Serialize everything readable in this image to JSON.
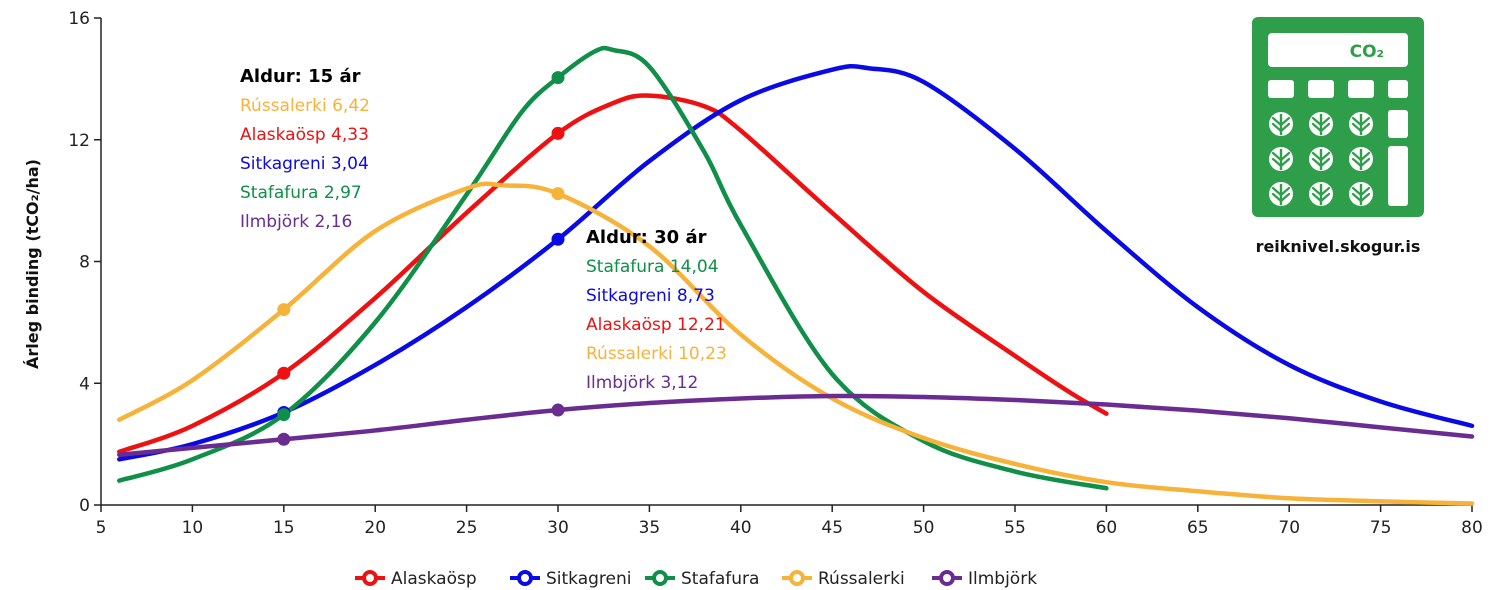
{
  "chart_data": {
    "type": "line",
    "ylabel": "Árleg binding (tCO₂/ha)",
    "xlabel": "",
    "xlim": [
      5,
      80
    ],
    "ylim": [
      0,
      16
    ],
    "x_ticks": [
      5,
      10,
      15,
      20,
      25,
      30,
      35,
      40,
      45,
      50,
      55,
      60,
      65,
      70,
      75,
      80
    ],
    "y_ticks": [
      0,
      4,
      8,
      12,
      16
    ],
    "grid": false,
    "legend_position": "bottom",
    "series": [
      {
        "name": "Alaskaösp",
        "color": "#ee1111",
        "x": [
          6,
          10,
          15,
          20,
          25,
          30,
          33,
          35,
          38,
          40,
          45,
          50,
          55,
          58,
          60
        ],
        "y": [
          1.75,
          2.6,
          4.33,
          6.8,
          9.6,
          12.21,
          13.2,
          13.45,
          13.1,
          12.3,
          9.6,
          7.0,
          4.9,
          3.7,
          3.0
        ]
      },
      {
        "name": "Sitkagreni",
        "color": "#0a0ae6",
        "x": [
          6,
          10,
          15,
          20,
          25,
          30,
          35,
          40,
          45,
          47,
          50,
          55,
          60,
          65,
          70,
          75,
          80
        ],
        "y": [
          1.5,
          2.0,
          3.04,
          4.6,
          6.5,
          8.73,
          11.3,
          13.3,
          14.3,
          14.35,
          13.9,
          11.7,
          9.0,
          6.5,
          4.6,
          3.4,
          2.6
        ]
      },
      {
        "name": "Stafafura",
        "color": "#0f8f47",
        "x": [
          6,
          10,
          15,
          20,
          25,
          28,
          30,
          32,
          33,
          35,
          38,
          40,
          45,
          50,
          55,
          60
        ],
        "y": [
          0.8,
          1.5,
          2.97,
          6.0,
          10.2,
          12.9,
          14.04,
          14.9,
          14.95,
          14.4,
          11.6,
          9.2,
          4.3,
          2.1,
          1.1,
          0.55
        ]
      },
      {
        "name": "Rússalerki",
        "color": "#f7b23a",
        "x": [
          6,
          10,
          15,
          20,
          25,
          27,
          30,
          35,
          40,
          45,
          50,
          55,
          60,
          65,
          70,
          75,
          80
        ],
        "y": [
          2.8,
          4.1,
          6.42,
          9.0,
          10.4,
          10.5,
          10.23,
          8.5,
          5.6,
          3.5,
          2.2,
          1.35,
          0.75,
          0.45,
          0.22,
          0.12,
          0.05
        ]
      },
      {
        "name": "Ilmbjörk",
        "color": "#6a2c91",
        "x": [
          6,
          15,
          20,
          25,
          30,
          35,
          40,
          45,
          50,
          55,
          60,
          65,
          70,
          75,
          80
        ],
        "y": [
          1.65,
          2.16,
          2.45,
          2.8,
          3.12,
          3.35,
          3.5,
          3.58,
          3.55,
          3.45,
          3.3,
          3.1,
          2.85,
          2.55,
          2.25
        ]
      }
    ],
    "markers": [
      {
        "series": "Rússalerki",
        "x": 15,
        "y": 6.42
      },
      {
        "series": "Alaskaösp",
        "x": 15,
        "y": 4.33
      },
      {
        "series": "Sitkagreni",
        "x": 15,
        "y": 3.04
      },
      {
        "series": "Stafafura",
        "x": 15,
        "y": 2.97
      },
      {
        "series": "Ilmbjörk",
        "x": 15,
        "y": 2.16
      },
      {
        "series": "Stafafura",
        "x": 30,
        "y": 14.04
      },
      {
        "series": "Alaskaösp",
        "x": 30,
        "y": 12.21
      },
      {
        "series": "Rússalerki",
        "x": 30,
        "y": 10.23
      },
      {
        "series": "Sitkagreni",
        "x": 30,
        "y": 8.73
      },
      {
        "series": "Ilmbjörk",
        "x": 30,
        "y": 3.12
      }
    ],
    "annotations": [
      {
        "title": "Aldur: 15 ár",
        "lines": [
          {
            "text": "Rússalerki 6,42",
            "color": "#f7b23a"
          },
          {
            "text": "Alaskaösp 4,33",
            "color": "#ee1111"
          },
          {
            "text": "Sitkagreni 3,04",
            "color": "#0a0ae6"
          },
          {
            "text": "Stafafura 2,97",
            "color": "#0f8f47"
          },
          {
            "text": "Ilmbjörk 2,16",
            "color": "#6a2c91"
          }
        ]
      },
      {
        "title": "Aldur: 30 ár",
        "lines": [
          {
            "text": "Stafafura 14,04",
            "color": "#0f8f47"
          },
          {
            "text": "Sitkagreni 8,73",
            "color": "#0a0ae6"
          },
          {
            "text": "Alaskaösp 12,21",
            "color": "#ee1111"
          },
          {
            "text": "Rússalerki 10,23",
            "color": "#f7b23a"
          },
          {
            "text": "Ilmbjörk 3,12",
            "color": "#6a2c91"
          }
        ]
      }
    ]
  },
  "logo": {
    "label": "CO₂",
    "icon": "calculator-icon",
    "color": "#2e9e4a",
    "url_text": "reiknivel.skogur.is"
  }
}
